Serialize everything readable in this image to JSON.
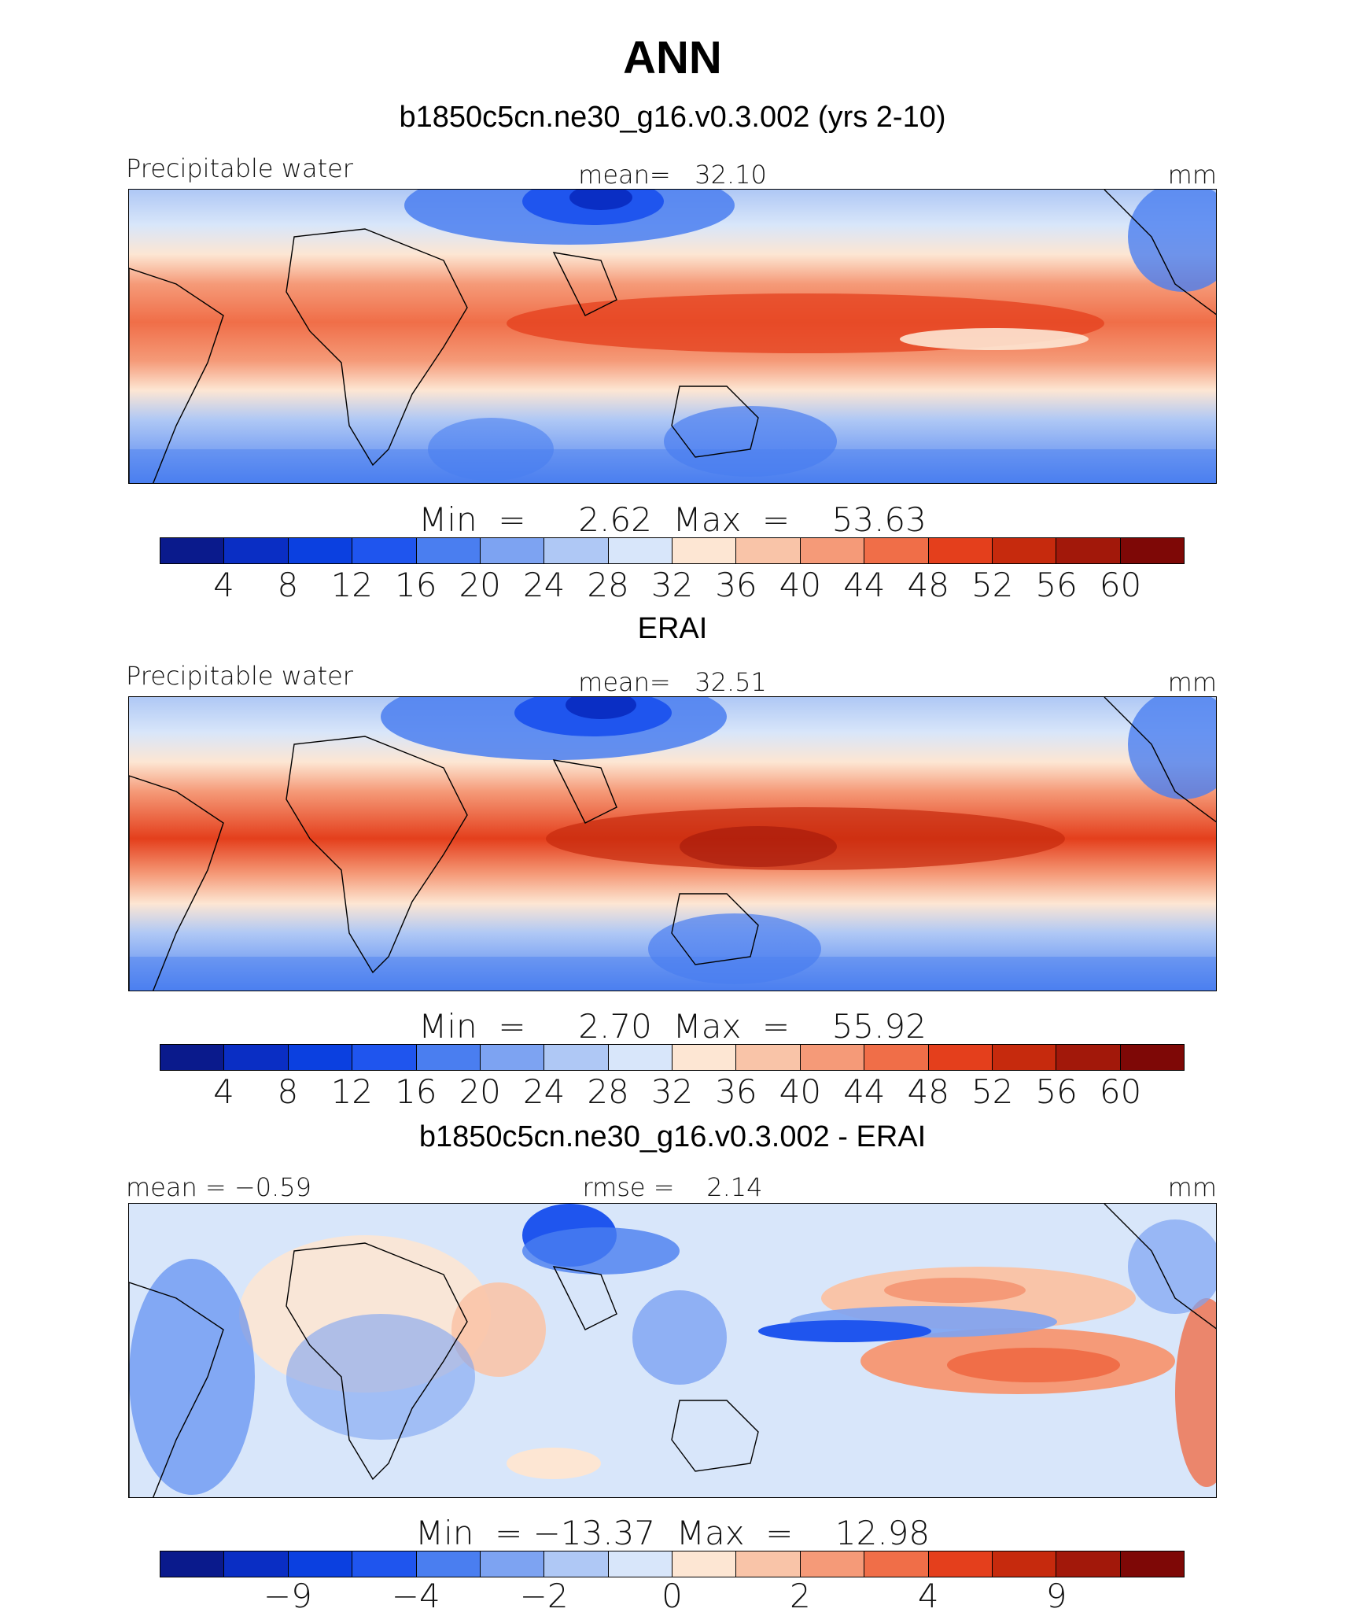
{
  "figure": {
    "title": "ANN",
    "panels": [
      {
        "id": "model",
        "subtitle": "b1850c5cn.ne30_g16.v0.3.002 (yrs 2-10)",
        "left_label": "Precipitable water",
        "center_label": "mean=   32.10",
        "units": "mm",
        "minmax": "Min  =     2.62  Max  =    53.63"
      },
      {
        "id": "obs",
        "subtitle": "ERAI",
        "left_label": "Precipitable water",
        "center_label": "mean=   32.51",
        "units": "mm",
        "minmax": "Min  =     2.70  Max  =    55.92"
      },
      {
        "id": "diff",
        "subtitle": "b1850c5cn.ne30_g16.v0.3.002 - ERAI",
        "left_label": "mean =   −0.59",
        "center_label": "rmse =    2.14",
        "units": "mm",
        "minmax": "Min  = −13.37  Max  =    12.98"
      }
    ]
  },
  "colors": {
    "palette": [
      "#0a1a8c",
      "#0a2ec4",
      "#0b40e0",
      "#1f55ee",
      "#4a7ef0",
      "#7da3f2",
      "#afc8f5",
      "#d8e6fa",
      "#fde6d3",
      "#f9c4a8",
      "#f59a78",
      "#f06e48",
      "#e43f1c",
      "#c62a0d",
      "#a2180a",
      "#7e0806"
    ],
    "land_outline": "#000000"
  },
  "chart_data": [
    {
      "type": "heatmap",
      "title": "b1850c5cn.ne30_g16.v0.3.002 (yrs 2-10)",
      "variable": "Precipitable water",
      "units": "mm",
      "mean": 32.1,
      "min": 2.62,
      "max": 53.63,
      "colorbar_levels": [
        4,
        8,
        12,
        16,
        20,
        24,
        28,
        32,
        36,
        40,
        44,
        48,
        52,
        56,
        60
      ],
      "colorbar_tick_labels": [
        "4",
        "8",
        "12",
        "16",
        "20",
        "24",
        "28",
        "32",
        "36",
        "40",
        "44",
        "48",
        "52",
        "56",
        "60"
      ]
    },
    {
      "type": "heatmap",
      "title": "ERAI",
      "variable": "Precipitable water",
      "units": "mm",
      "mean": 32.51,
      "min": 2.7,
      "max": 55.92,
      "colorbar_levels": [
        4,
        8,
        12,
        16,
        20,
        24,
        28,
        32,
        36,
        40,
        44,
        48,
        52,
        56,
        60
      ],
      "colorbar_tick_labels": [
        "4",
        "8",
        "12",
        "16",
        "20",
        "24",
        "28",
        "32",
        "36",
        "40",
        "44",
        "48",
        "52",
        "56",
        "60"
      ]
    },
    {
      "type": "heatmap",
      "title": "b1850c5cn.ne30_g16.v0.3.002 - ERAI",
      "units": "mm",
      "mean": -0.59,
      "rmse": 2.14,
      "min": -13.37,
      "max": 12.98,
      "colorbar_levels": [
        -12,
        -9,
        -6,
        -4,
        -3,
        -2,
        -1,
        0,
        1,
        2,
        3,
        4,
        6,
        9,
        12
      ],
      "colorbar_tick_labels": [
        "−9",
        "−4",
        "−2",
        "0",
        "2",
        "4",
        "9"
      ],
      "colorbar_tick_level_index": [
        1,
        3,
        5,
        7,
        9,
        11,
        13
      ]
    }
  ]
}
